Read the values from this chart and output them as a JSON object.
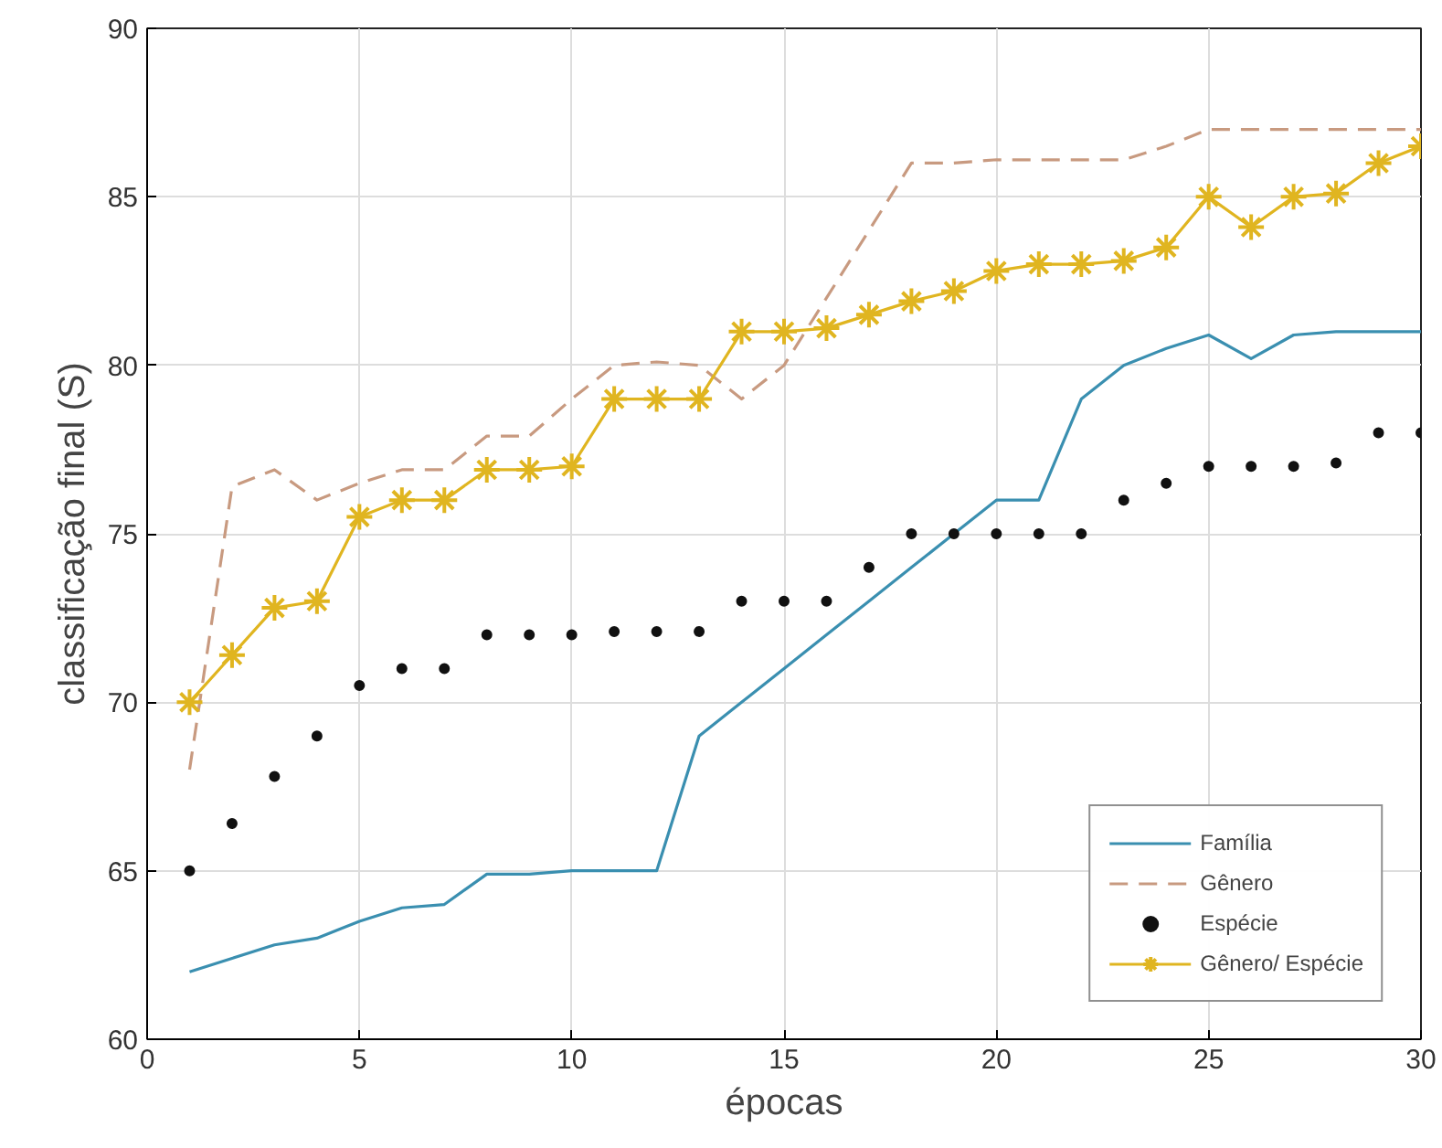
{
  "chart_data": {
    "type": "line",
    "xlabel": "épocas",
    "ylabel": "classificação final (S)",
    "x": [
      1,
      2,
      3,
      4,
      5,
      6,
      7,
      8,
      9,
      10,
      11,
      12,
      13,
      14,
      15,
      16,
      17,
      18,
      19,
      20,
      21,
      22,
      23,
      24,
      25,
      26,
      27,
      28,
      29,
      30
    ],
    "series": [
      {
        "name": "Família",
        "color": "#3a8fb0",
        "line_style": "solid",
        "marker": "none",
        "values": [
          62,
          62.4,
          62.8,
          63,
          63.5,
          63.9,
          64,
          64.9,
          64.9,
          65,
          65,
          65,
          69,
          70,
          71,
          72,
          73,
          74,
          75,
          76,
          76,
          79,
          80,
          80.5,
          80.9,
          80.2,
          80.9,
          81,
          81,
          81
        ]
      },
      {
        "name": "Gênero",
        "color": "#c89a80",
        "line_style": "dashed",
        "marker": "none",
        "values": [
          68,
          76.4,
          76.9,
          76,
          76.5,
          76.9,
          76.9,
          77.9,
          77.9,
          79,
          80,
          80.1,
          80,
          79,
          80,
          82,
          84,
          86,
          86,
          86.1,
          86.1,
          86.1,
          86.1,
          86.5,
          87,
          87,
          87,
          87,
          87,
          87
        ]
      },
      {
        "name": "Espécie",
        "color": "#111111",
        "type": "scatter",
        "marker": "circle",
        "values": [
          65,
          66.4,
          67.8,
          69,
          70.5,
          71,
          71,
          72,
          72,
          72,
          72.1,
          72.1,
          72.1,
          73,
          73,
          73,
          74,
          75,
          75,
          75,
          75,
          75,
          76,
          76.5,
          77,
          77,
          77,
          77.1,
          78,
          78
        ]
      },
      {
        "name": "Gênero/ Espécie",
        "color": "#e0b520",
        "line_style": "solid",
        "marker": "cross",
        "values": [
          70,
          71.4,
          72.8,
          73,
          75.5,
          76,
          76,
          76.9,
          76.9,
          77,
          79,
          79,
          79,
          81,
          81,
          81.1,
          81.5,
          81.9,
          82.2,
          82.8,
          83,
          83,
          83.1,
          83.5,
          85,
          84.1,
          85,
          85.1,
          86,
          86.5
        ]
      }
    ],
    "xlim": [
      0,
      30
    ],
    "ylim": [
      60,
      90
    ],
    "xticks": [
      0,
      5,
      10,
      15,
      20,
      25,
      30
    ],
    "yticks": [
      60,
      65,
      70,
      75,
      80,
      85,
      90
    ],
    "grid": true,
    "legend": "bottom right"
  }
}
